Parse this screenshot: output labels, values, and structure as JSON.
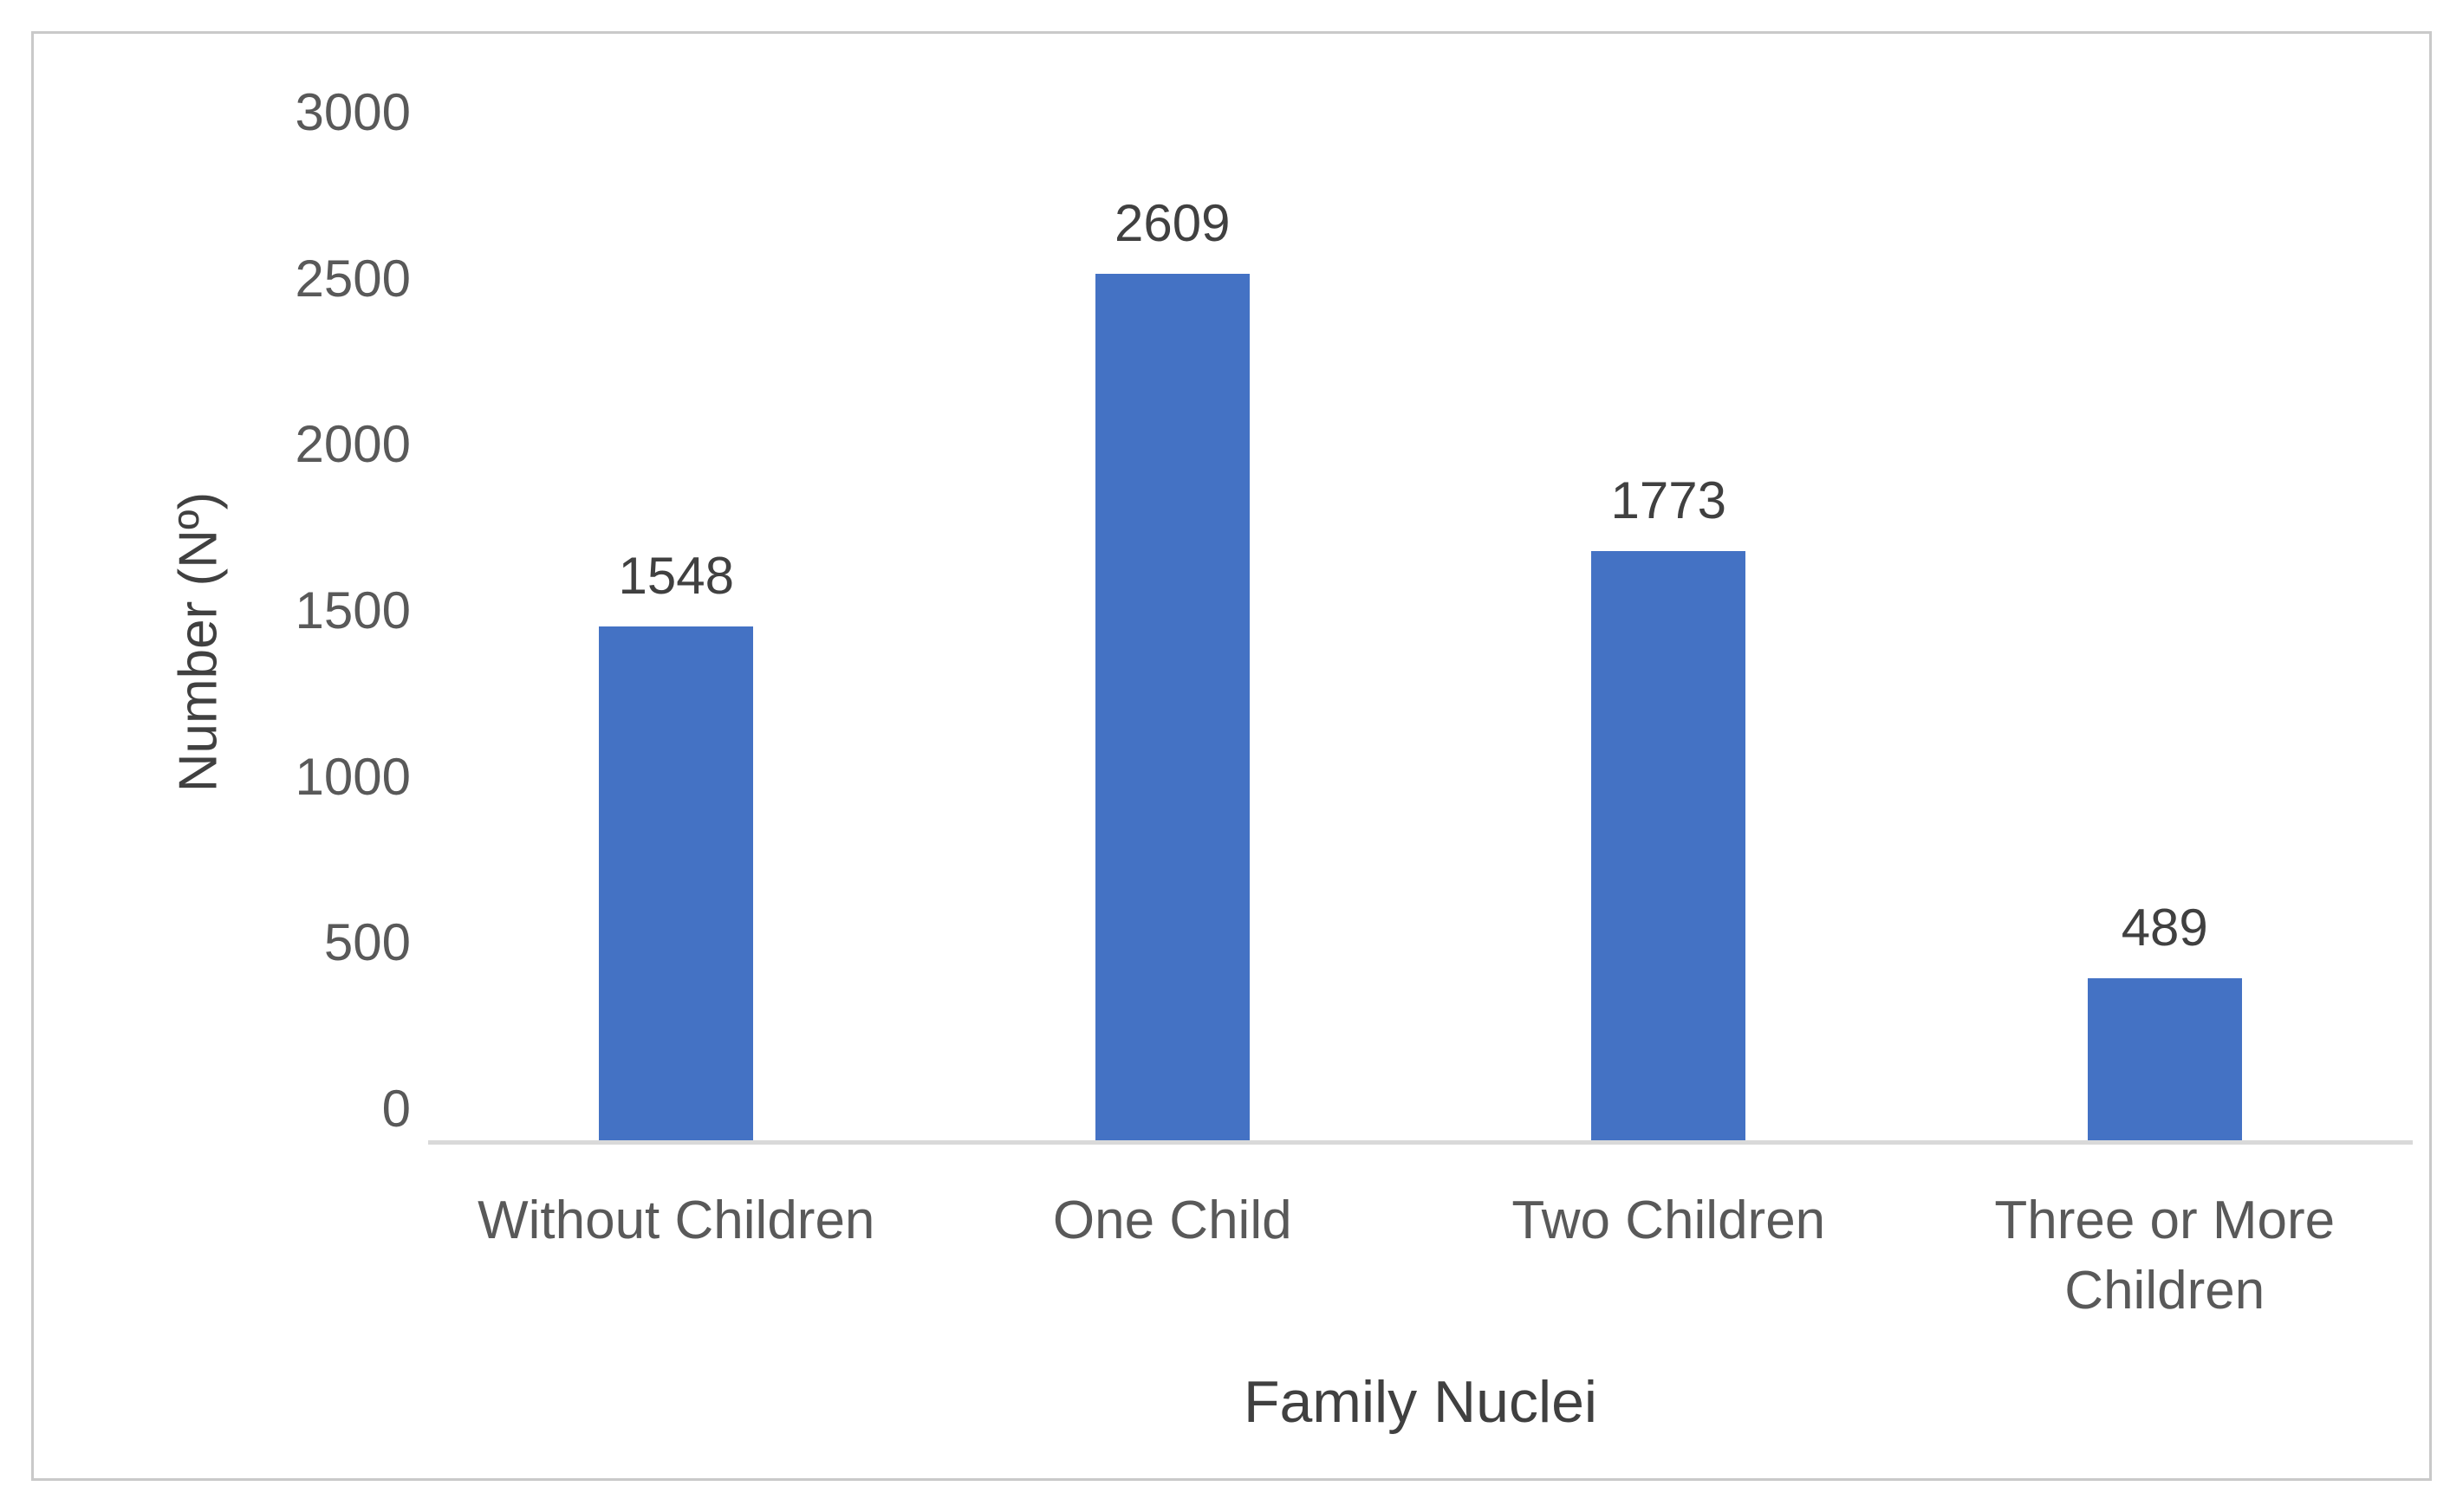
{
  "chart_data": {
    "type": "bar",
    "title": "",
    "categories": [
      "Without Children",
      "One Child",
      "Two Children",
      "Three or More Children"
    ],
    "values": [
      1548,
      2609,
      1773,
      489
    ],
    "data_labels": [
      "1548",
      "2609",
      "1773",
      "489"
    ],
    "xlabel": "Family Nuclei",
    "ylabel": "Number (Nº)",
    "ylim": [
      0,
      3000
    ],
    "yticks": [
      "0",
      "500",
      "1000",
      "1500",
      "2000",
      "2500",
      "3000"
    ],
    "grid": false,
    "legend": "none",
    "data_labels_position": "above-bar",
    "colors": {
      "bar_fill": "#4472C4",
      "axis_line": "#D9D9D9",
      "tick_label": "#595959",
      "data_label": "#404040",
      "frame_border": "#C9C9C9",
      "background": "#FFFFFF"
    }
  }
}
